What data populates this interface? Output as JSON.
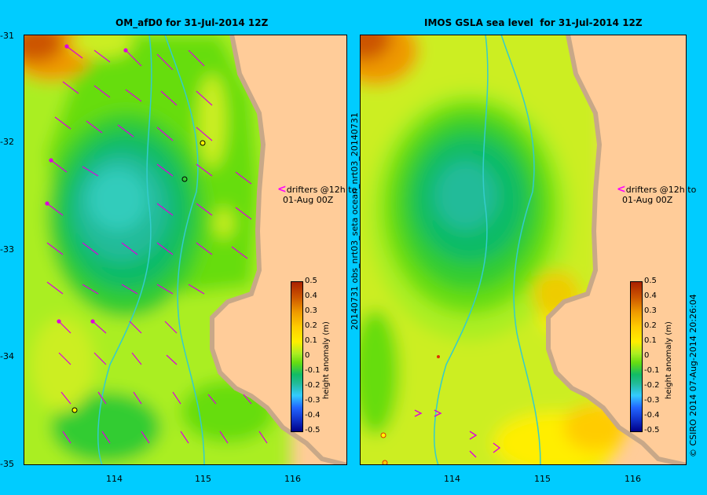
{
  "left_panel": {
    "title": "OM_afD0 for 31-Jul-2014 12Z",
    "note_line1": "drifters @12h to",
    "note_line2": "01-Aug 00Z"
  },
  "right_panel": {
    "title": "IMOS GSLA sea level  for 31-Jul-2014 12Z",
    "note_line1": "drifters @12h to",
    "note_line2": "01-Aug 00Z",
    "side_label": "20140731 obs_nrt03_seta    ocean_nrt03_20140731"
  },
  "axes": {
    "lat_ticks": [
      "-31",
      "-32",
      "-33",
      "-34",
      "-35"
    ],
    "lon_ticks": [
      "114",
      "115",
      "116"
    ]
  },
  "colorbar": {
    "label": "height anomaly (m)",
    "ticks": [
      "0.5",
      "0.4",
      "0.3",
      "0.2",
      "0.1",
      "0",
      "-0.1",
      "-0.2",
      "-0.3",
      "-0.4",
      "-0.5"
    ],
    "range": [
      -0.5,
      0.5
    ]
  },
  "footer": {
    "credit": "© CSIRO 2014    07-Aug-2014 20:26:04"
  },
  "colors": {
    "land": "#ffcc99",
    "coast_shelf": "#c8a888",
    "arrows": "#dd00dd",
    "bathymetry": "#33cccc",
    "background": "#00ccff"
  }
}
